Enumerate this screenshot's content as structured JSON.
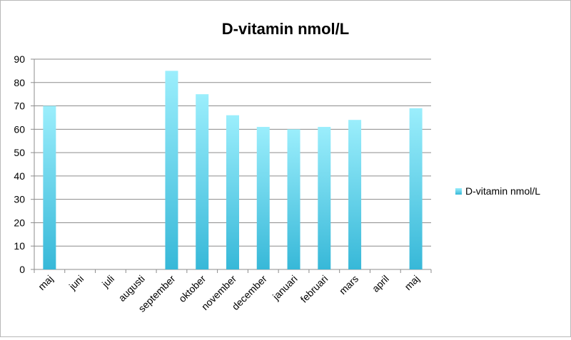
{
  "chart_data": {
    "type": "bar",
    "title": "D-vitamin nmol/L",
    "xlabel": "",
    "ylabel": "",
    "categories": [
      "maj",
      "juni",
      "juli",
      "augusti",
      "september",
      "oktober",
      "november",
      "december",
      "januari",
      "februari",
      "mars",
      "april",
      "maj"
    ],
    "series": [
      {
        "name": "D-vitamin nmol/L",
        "values": [
          70,
          null,
          null,
          null,
          85,
          75,
          66,
          61,
          60,
          61,
          64,
          null,
          69
        ]
      }
    ],
    "ylim": [
      0,
      90
    ],
    "yticks": [
      0,
      10,
      20,
      30,
      40,
      50,
      60,
      70,
      80,
      90
    ],
    "grid": true,
    "legend_position": "right",
    "colors": {
      "bar_top": "#9beefc",
      "bar_bottom": "#37b8d8",
      "grid": "#8c8c8c"
    }
  }
}
